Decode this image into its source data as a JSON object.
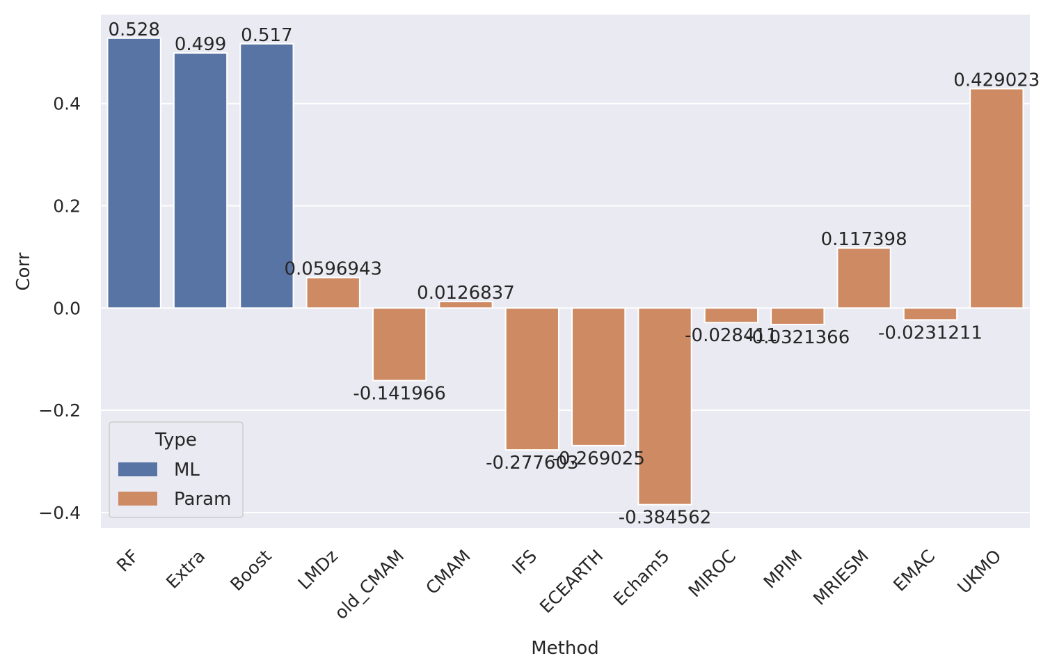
{
  "chart_data": {
    "type": "bar",
    "xlabel": "Method",
    "ylabel": "Corr",
    "ylim": [
      -0.43,
      0.574
    ],
    "yticks": [
      -0.4,
      -0.2,
      0.0,
      0.2,
      0.4
    ],
    "ytick_labels": [
      "−0.4",
      "−0.2",
      "0.0",
      "0.2",
      "0.4"
    ],
    "grid": true,
    "background": "#eaeaf2",
    "grid_color": "#ffffff",
    "categories": [
      "RF",
      "Extra",
      "Boost",
      "LMDz",
      "old_CMAM",
      "CMAM",
      "IFS",
      "ECEARTH",
      "Echam5",
      "MIROC",
      "MPIM",
      "MRIESM",
      "EMAC",
      "UKMO"
    ],
    "values": [
      0.528,
      0.499,
      0.517,
      0.0596943,
      -0.141966,
      0.0126837,
      -0.277603,
      -0.269025,
      -0.384562,
      -0.028411,
      -0.0321366,
      0.117398,
      -0.0231211,
      0.429023
    ],
    "value_labels": [
      "0.528",
      "0.499",
      "0.517",
      "0.0596943",
      "-0.141966",
      "0.0126837",
      "-0.277603",
      "-0.269025",
      "-0.384562",
      "-0.028411",
      "-0.0321366",
      "0.117398",
      "-0.0231211",
      "0.429023"
    ],
    "types": [
      "ML",
      "ML",
      "ML",
      "Param",
      "Param",
      "Param",
      "Param",
      "Param",
      "Param",
      "Param",
      "Param",
      "Param",
      "Param",
      "Param"
    ],
    "legend": {
      "title": "Type",
      "placement": "lower-left",
      "entries": [
        {
          "name": "ML",
          "color": "#5874a4"
        },
        {
          "name": "Param",
          "color": "#cd8a63"
        }
      ]
    }
  }
}
